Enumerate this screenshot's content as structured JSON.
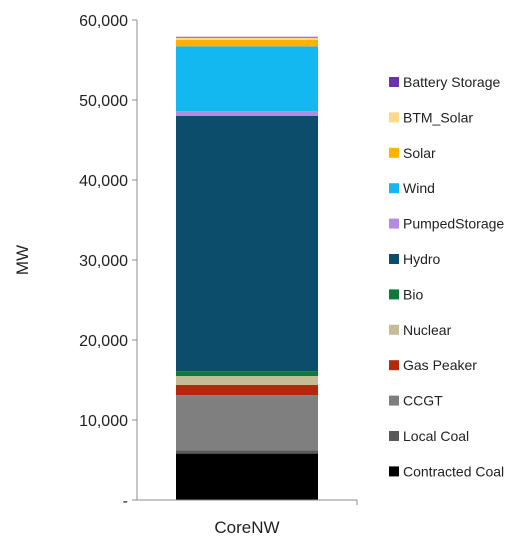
{
  "chart_data": {
    "type": "bar",
    "stacked": true,
    "categories": [
      "CoreNW"
    ],
    "ylabel": "MW",
    "xlabel": "",
    "title": "",
    "ylim": [
      0,
      60000
    ],
    "yticks": [
      {
        "value": 0,
        "label": "-"
      },
      {
        "value": 10000,
        "label": "10,000"
      },
      {
        "value": 20000,
        "label": "20,000"
      },
      {
        "value": 30000,
        "label": "30,000"
      },
      {
        "value": 40000,
        "label": "40,000"
      },
      {
        "value": 50000,
        "label": "50,000"
      },
      {
        "value": 60000,
        "label": "60,000"
      }
    ],
    "grid": false,
    "legend_position": "right",
    "series": [
      {
        "name": "Contracted Coal",
        "color": "#000000",
        "values": [
          5800
        ]
      },
      {
        "name": "Local Coal",
        "color": "#595959",
        "values": [
          400
        ]
      },
      {
        "name": "CCGT",
        "color": "#7f7f7f",
        "values": [
          6900
        ]
      },
      {
        "name": "Gas Peaker",
        "color": "#b22a0c",
        "values": [
          1300
        ]
      },
      {
        "name": "Nuclear",
        "color": "#c4bc96",
        "values": [
          1100
        ]
      },
      {
        "name": "Bio",
        "color": "#0b7a3b",
        "values": [
          600
        ]
      },
      {
        "name": "Hydro",
        "color": "#0c4d6b",
        "values": [
          31900
        ]
      },
      {
        "name": "PumpedStorage",
        "color": "#b58ae0",
        "values": [
          600
        ]
      },
      {
        "name": "Wind",
        "color": "#14b8f0",
        "values": [
          8100
        ]
      },
      {
        "name": "Solar",
        "color": "#ffb300",
        "values": [
          800
        ]
      },
      {
        "name": "BTM_Solar",
        "color": "#ffd98a",
        "values": [
          300
        ]
      },
      {
        "name": "Battery Storage",
        "color": "#6a33a8",
        "values": [
          100
        ]
      }
    ]
  }
}
